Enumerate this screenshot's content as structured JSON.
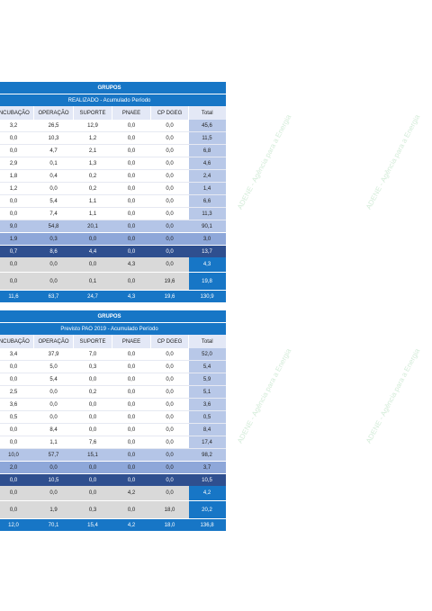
{
  "watermark": "ADENE - Agência para a Energia",
  "tables": [
    {
      "group_title": "GRUPOS",
      "subtitle": "REALIZADO - Acumulado Período",
      "headers": [
        "INCUBAÇÃO",
        "OPERAÇÃO",
        "SUPORTE",
        "PNAEE",
        "CP DGEG",
        "Total"
      ],
      "rows": [
        [
          "3,2",
          "26,5",
          "12,9",
          "0,0",
          "0,0",
          "45,6"
        ],
        [
          "0,0",
          "10,3",
          "1,2",
          "0,0",
          "0,0",
          "11,5"
        ],
        [
          "0,0",
          "4,7",
          "2,1",
          "0,0",
          "0,0",
          "6,8"
        ],
        [
          "2,9",
          "0,1",
          "1,3",
          "0,0",
          "0,0",
          "4,6"
        ],
        [
          "1,8",
          "0,4",
          "0,2",
          "0,0",
          "0,0",
          "2,4"
        ],
        [
          "1,2",
          "0,0",
          "0,2",
          "0,0",
          "0,0",
          "1,4"
        ],
        [
          "0,0",
          "5,4",
          "1,1",
          "0,0",
          "0,0",
          "6,6"
        ],
        [
          "0,0",
          "7,4",
          "1,1",
          "0,0",
          "0,0",
          "11,3"
        ]
      ],
      "subtotal1": [
        "9,0",
        "54,8",
        "20,1",
        "0,0",
        "0,0",
        "90,1"
      ],
      "subtotal2": [
        "1,9",
        "0,3",
        "0,0",
        "0,0",
        "0,0",
        "3,0"
      ],
      "subtotal3": [
        "0,7",
        "8,6",
        "4,4",
        "0,0",
        "0,0",
        "13,7"
      ],
      "grey1": [
        "0,0",
        "0,0",
        "0,0",
        "4,3",
        "0,0",
        "4,3"
      ],
      "grey2": [
        "0,0",
        "0,0",
        "0,1",
        "0,0",
        "19,6",
        "19,8"
      ],
      "total": [
        "11,6",
        "63,7",
        "24,7",
        "4,3",
        "19,6",
        "130,9"
      ]
    },
    {
      "group_title": "GRUPOS",
      "subtitle": "Previsto PAO 2019 - Acumulado Período",
      "headers": [
        "INCUBAÇÃO",
        "OPERAÇÃO",
        "SUPORTE",
        "PNAEE",
        "CP DGEG",
        "Total"
      ],
      "rows": [
        [
          "3,4",
          "37,9",
          "7,0",
          "0,0",
          "0,0",
          "52,0"
        ],
        [
          "0,0",
          "5,0",
          "0,3",
          "0,0",
          "0,0",
          "5,4"
        ],
        [
          "0,0",
          "5,4",
          "0,0",
          "0,0",
          "0,0",
          "5,9"
        ],
        [
          "2,5",
          "0,0",
          "0,2",
          "0,0",
          "0,0",
          "5,1"
        ],
        [
          "3,6",
          "0,0",
          "0,0",
          "0,0",
          "0,0",
          "3,6"
        ],
        [
          "0,5",
          "0,0",
          "0,0",
          "0,0",
          "0,0",
          "0,5"
        ],
        [
          "0,0",
          "8,4",
          "0,0",
          "0,0",
          "0,0",
          "8,4"
        ],
        [
          "0,0",
          "1,1",
          "7,6",
          "0,0",
          "0,0",
          "17,4"
        ]
      ],
      "subtotal1": [
        "10,0",
        "57,7",
        "15,1",
        "0,0",
        "0,0",
        "98,2"
      ],
      "subtotal2": [
        "2,0",
        "0,0",
        "0,0",
        "0,0",
        "0,0",
        "3,7"
      ],
      "subtotal3": [
        "0,0",
        "10,5",
        "0,0",
        "0,0",
        "0,0",
        "10,5"
      ],
      "grey1": [
        "0,0",
        "0,0",
        "0,0",
        "4,2",
        "0,0",
        "4,2"
      ],
      "grey2": [
        "0,0",
        "1,9",
        "0,3",
        "0,0",
        "18,0",
        "20,2"
      ],
      "total": [
        "12,0",
        "70,1",
        "15,4",
        "4,2",
        "18,0",
        "136,8"
      ]
    }
  ]
}
